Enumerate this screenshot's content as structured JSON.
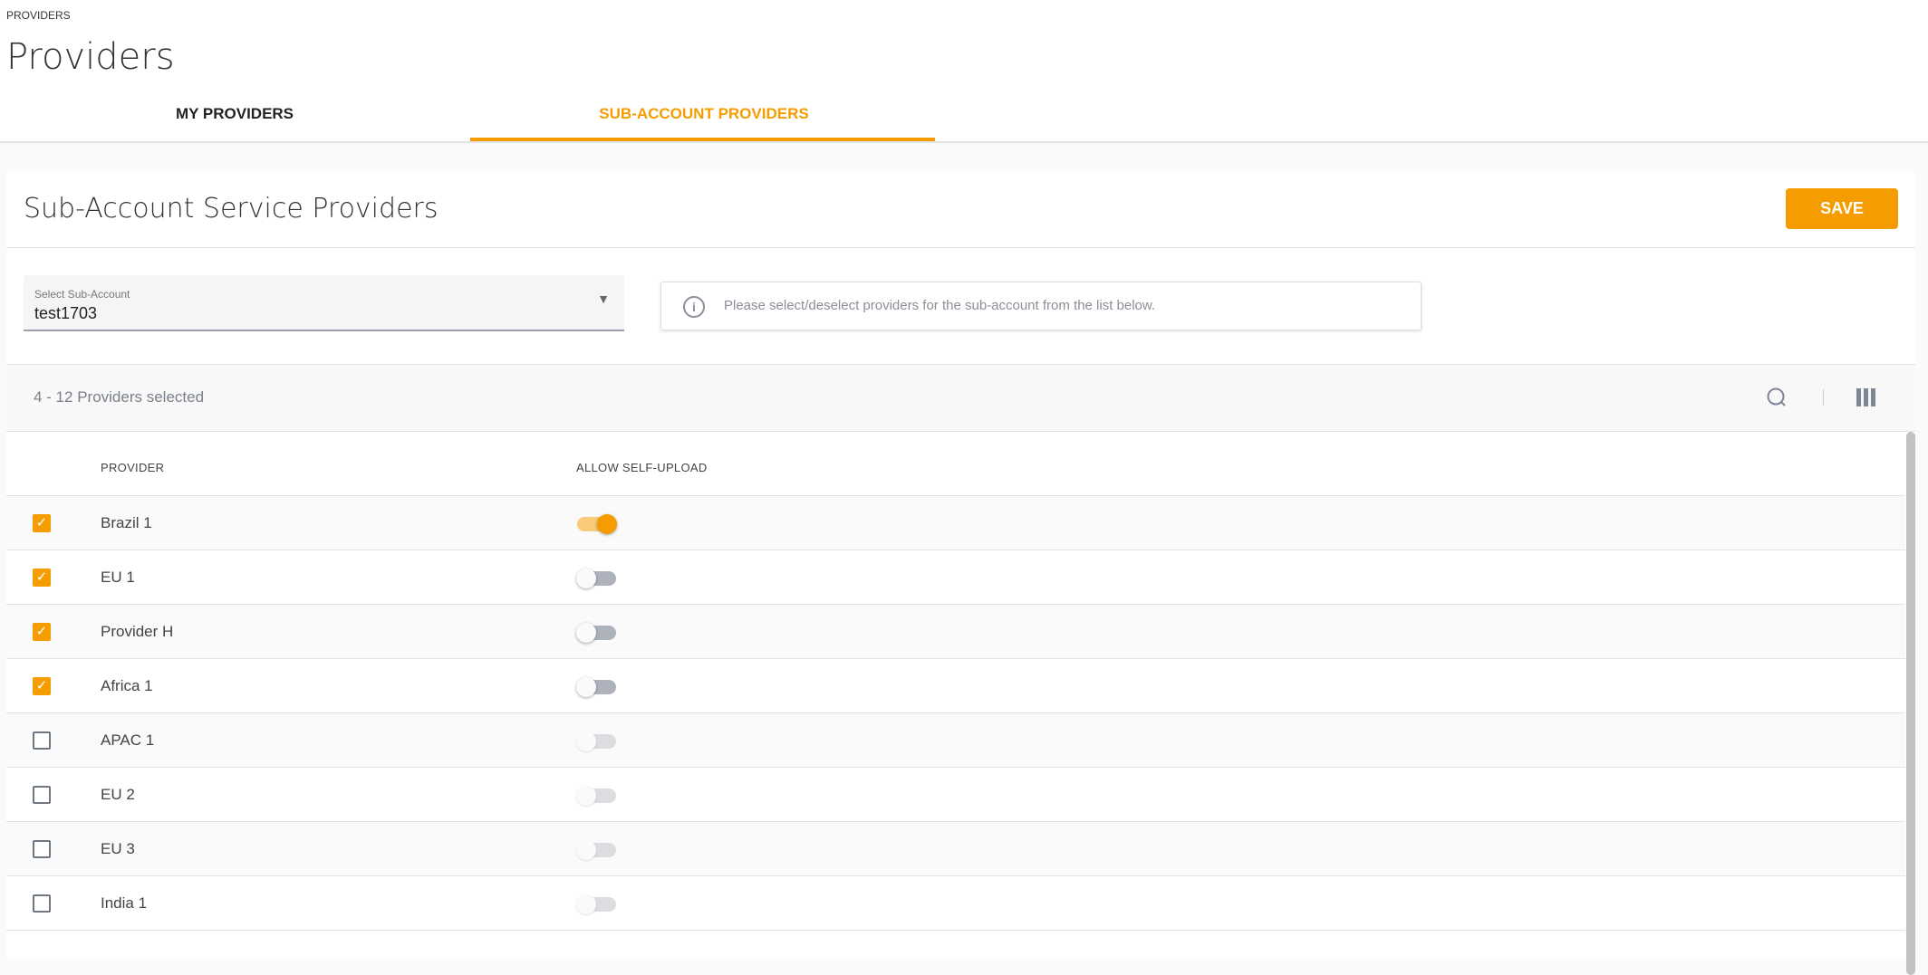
{
  "breadcrumb": "PROVIDERS",
  "page_title": "Providers",
  "tabs": [
    {
      "label": "MY PROVIDERS",
      "active": false
    },
    {
      "label": "SUB-ACCOUNT PROVIDERS",
      "active": true
    }
  ],
  "accent_color": "#f59c00",
  "card": {
    "title": "Sub-Account Service Providers",
    "save_label": "SAVE"
  },
  "select": {
    "label": "Select Sub-Account",
    "value": "test1703"
  },
  "info": {
    "text": "Please select/deselect providers for the sub-account from the list below.",
    "icon": "info-icon"
  },
  "toolbar": {
    "count_text": "4 - 12 Providers selected",
    "search_icon": "search-icon",
    "columns_icon": "columns-icon"
  },
  "table": {
    "headers": [
      "PROVIDER",
      "ALLOW SELF-UPLOAD"
    ],
    "rows": [
      {
        "name": "Brazil 1",
        "selected": true,
        "self_upload": true
      },
      {
        "name": "EU 1",
        "selected": true,
        "self_upload": false
      },
      {
        "name": "Provider H",
        "selected": true,
        "self_upload": false
      },
      {
        "name": "Africa 1",
        "selected": true,
        "self_upload": false
      },
      {
        "name": "APAC 1",
        "selected": false,
        "self_upload": false
      },
      {
        "name": "EU 2",
        "selected": false,
        "self_upload": false
      },
      {
        "name": "EU 3",
        "selected": false,
        "self_upload": false
      },
      {
        "name": "India 1",
        "selected": false,
        "self_upload": false
      }
    ]
  }
}
